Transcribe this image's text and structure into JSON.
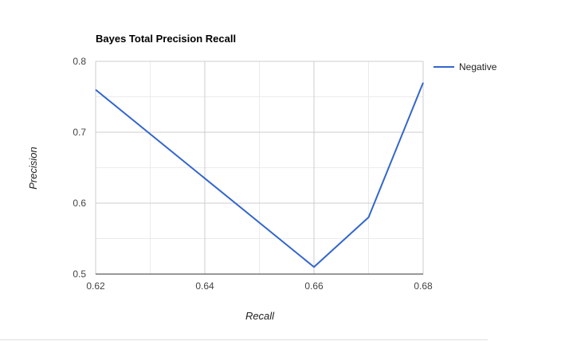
{
  "chart_data": {
    "type": "line",
    "title": "Bayes Total Precision Recall",
    "xlabel": "Recall",
    "ylabel": "Precision",
    "xlim": [
      0.62,
      0.68
    ],
    "ylim": [
      0.5,
      0.8
    ],
    "x_ticks": [
      "0.62",
      "0.64",
      "0.66",
      "0.68"
    ],
    "y_ticks": [
      "0.8",
      "0.7",
      "0.6",
      "0.5"
    ],
    "grid": true,
    "legend_position": "right",
    "series": [
      {
        "name": "Negative",
        "color": "#3366cc",
        "x": [
          0.62,
          0.66,
          0.67,
          0.68
        ],
        "y": [
          0.76,
          0.51,
          0.58,
          0.77
        ]
      }
    ]
  }
}
